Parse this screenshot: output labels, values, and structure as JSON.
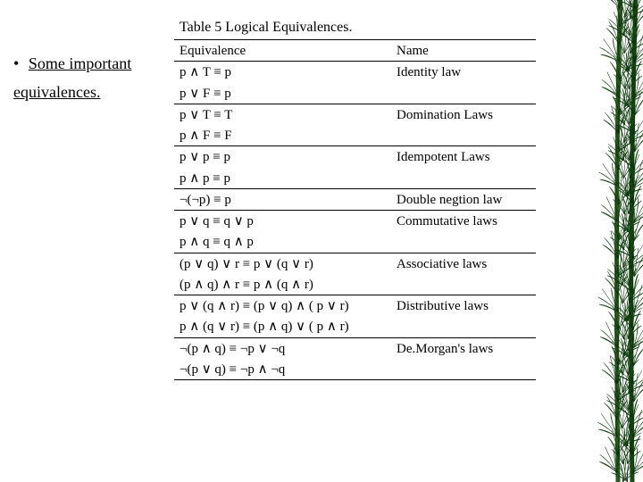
{
  "side": {
    "bullet": "•",
    "line1": "Some important",
    "line2": "equivalences."
  },
  "table": {
    "title": "Table   5   Logical Equivalences.",
    "header": {
      "eq": "Equivalence",
      "name": "Name"
    },
    "rows": [
      {
        "eq": "p ∧ T ≡ p",
        "name": "Identity law",
        "sep": false
      },
      {
        "eq": "p ∨ F ≡ p",
        "name": "",
        "sep": false
      },
      {
        "eq": "p ∨ T ≡ T",
        "name": "Domination Laws",
        "sep": true
      },
      {
        "eq": "p ∧ F ≡ F",
        "name": "",
        "sep": false
      },
      {
        "eq": "p ∨ p ≡ p",
        "name": "Idempotent Laws",
        "sep": true
      },
      {
        "eq": "p ∧ p ≡ p",
        "name": "",
        "sep": false
      },
      {
        "eq": "¬(¬p) ≡ p",
        "name": "Double negtion law",
        "sep": true
      },
      {
        "eq": "p ∨ q ≡ q ∨ p",
        "name": "Commutative laws",
        "sep": true
      },
      {
        "eq": "p ∧ q ≡ q ∧ p",
        "name": "",
        "sep": false
      },
      {
        "eq": "(p ∨ q) ∨ r ≡ p ∨ (q ∨ r)",
        "name": "Associative laws",
        "sep": true
      },
      {
        "eq": "(p ∧ q) ∧ r ≡ p ∧ (q ∧ r)",
        "name": "",
        "sep": false
      },
      {
        "eq": "p ∨ (q ∧ r) ≡ (p ∨ q) ∧ ( p ∨ r)",
        "name": "Distributive laws",
        "sep": true
      },
      {
        "eq": "p ∧ (q ∨ r) ≡ (p ∧ q) ∨ ( p ∧ r)",
        "name": "",
        "sep": false
      },
      {
        "eq": "¬(p ∧ q) ≡ ¬p ∨ ¬q",
        "name": "De.Morgan's laws",
        "sep": true
      },
      {
        "eq": "¬(p ∨ q) ≡ ¬p ∧ ¬q",
        "name": "",
        "sep": false
      }
    ]
  },
  "style": {
    "text_color": "#000000",
    "bg_color": "#ffffff",
    "leaf_dark": "#0a4a0a",
    "leaf_mid": "#1a7a1a",
    "leaf_light": "#3aa83a",
    "leaf_hi": "#7fd27f",
    "stem": "#2a5a1a"
  }
}
